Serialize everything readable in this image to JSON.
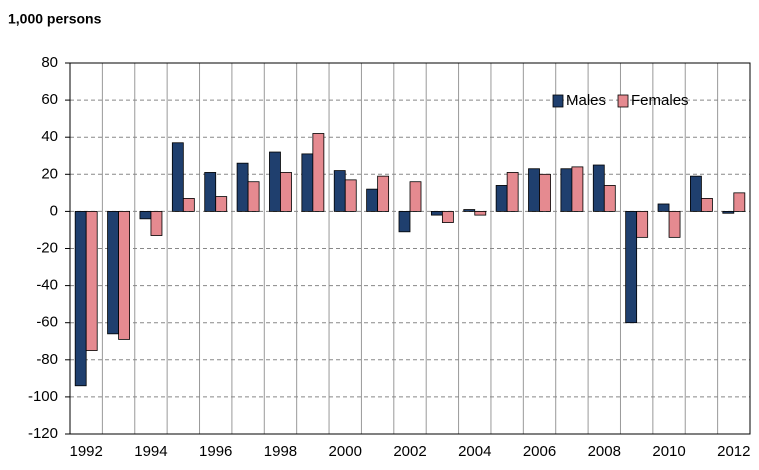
{
  "chart_data": {
    "type": "bar",
    "title": "1,000 persons",
    "categories": [
      "1992",
      null,
      "1994",
      null,
      "1996",
      null,
      "1998",
      null,
      "2000",
      null,
      "2002",
      null,
      "2004",
      null,
      "2006",
      null,
      "2008",
      null,
      "2010",
      null,
      "2012"
    ],
    "series": [
      {
        "name": "Males",
        "color": "#1f3f6e",
        "values": [
          -94,
          -66,
          -4,
          37,
          21,
          26,
          32,
          31,
          22,
          12,
          -11,
          -2,
          1,
          14,
          23,
          23,
          25,
          -60,
          4,
          19,
          -1
        ]
      },
      {
        "name": "Females",
        "color": "#e58a90",
        "values": [
          -75,
          -69,
          -13,
          7,
          8,
          16,
          21,
          42,
          17,
          19,
          16,
          -6,
          -2,
          21,
          20,
          24,
          14,
          -14,
          -14,
          7,
          10
        ]
      }
    ],
    "ylim": [
      -120,
      80
    ],
    "yticks": [
      -120,
      -100,
      -80,
      -60,
      -40,
      -20,
      0,
      20,
      40,
      60,
      80
    ],
    "grid": true,
    "legend": "upper right"
  }
}
